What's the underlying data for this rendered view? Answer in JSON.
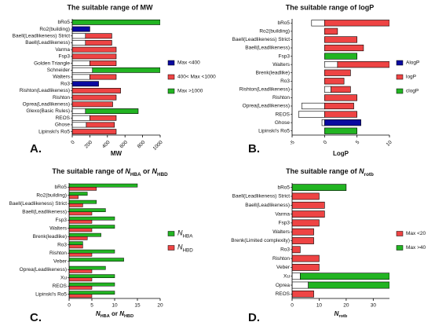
{
  "chart_data": [
    {
      "type": "range_bar",
      "panel": "A.",
      "title": "The suitable range of MW",
      "xlabel": "MW",
      "categories": [
        "bRo5",
        "Ro2(building)",
        "Baell(Leadlikeness) Strict",
        "Baell(Leadlikeness)",
        "Varma",
        "Fsp3",
        "Golden Triangle",
        "Schneider",
        "Walters",
        "Ro3",
        "Rishton(Leadlikeness)",
        "Rishton",
        "Oprea(Leadlikeness)",
        "Glexo(Basic Rules)",
        "REOS",
        "Ghose",
        "Lipinski's Ro5"
      ],
      "series": [
        {
          "name": "Max <400",
          "color": "#0a0aa0",
          "values": [
            null,
            [
              0,
              200
            ],
            null,
            null,
            null,
            null,
            null,
            null,
            null,
            [
              0,
              300
            ],
            null,
            null,
            null,
            null,
            null,
            null,
            null
          ]
        },
        {
          "name": "400< Max <1000",
          "color": "#ee4444",
          "values": [
            null,
            null,
            [
              150,
              450
            ],
            [
              150,
              450
            ],
            [
              0,
              500
            ],
            [
              0,
              500
            ],
            [
              200,
              500
            ],
            null,
            [
              200,
              500
            ],
            null,
            [
              0,
              550
            ],
            [
              0,
              500
            ],
            [
              0,
              460
            ],
            null,
            [
              200,
              500
            ],
            [
              160,
              480
            ],
            [
              0,
              500
            ]
          ]
        },
        {
          "name": "Max >1000",
          "color": "#22b422",
          "values": [
            [
              0,
              1000
            ],
            null,
            null,
            null,
            null,
            null,
            null,
            [
              230,
              1000
            ],
            null,
            null,
            null,
            null,
            null,
            [
              150,
              750
            ],
            null,
            null,
            null
          ]
        }
      ],
      "xlim": [
        0,
        1000
      ],
      "xticks": [
        0,
        200,
        400,
        600,
        800,
        1000
      ],
      "rotate_xticks": true,
      "legend": "right"
    },
    {
      "type": "range_bar",
      "panel": "B.",
      "title": "The suitable range of logP",
      "xlabel": "LogP",
      "categories": [
        "bRo5",
        "Ro2(building)",
        "Baell(Leadlikeness) Strict",
        "Baell(Leadlikeness)",
        "Fsp3",
        "Walters",
        "Brenk(leadlike)",
        "Ro3",
        "Rishton(Leadlikeness)",
        "Rishton",
        "Oprea(Leadlikeness)",
        "REOS",
        "Ghose",
        "Lipinski's Ro5"
      ],
      "series": [
        {
          "name": "AlogP",
          "color": "#0a0aa0",
          "values": [
            null,
            null,
            null,
            null,
            null,
            null,
            null,
            null,
            null,
            null,
            null,
            null,
            [
              -0.4,
              5.6
            ],
            null
          ]
        },
        {
          "name": "logP",
          "color": "#ee4444",
          "values": [
            [
              -2,
              10
            ],
            [
              0,
              2
            ],
            [
              0,
              5
            ],
            [
              0,
              6
            ],
            null,
            [
              2,
              10
            ],
            [
              0,
              4
            ],
            [
              0,
              3
            ],
            [
              1,
              4
            ],
            [
              0,
              5
            ],
            [
              -3.5,
              4.5
            ],
            [
              -4,
              5
            ],
            null,
            null
          ]
        },
        {
          "name": "clogP",
          "color": "#22b422",
          "values": [
            null,
            null,
            null,
            null,
            [
              0,
              5
            ],
            null,
            null,
            null,
            null,
            null,
            null,
            null,
            null,
            [
              0,
              5
            ]
          ]
        }
      ],
      "xlim": [
        -5,
        10
      ],
      "xticks": [
        -5,
        0,
        5,
        10
      ],
      "rotate_xticks": true,
      "legend": "right"
    },
    {
      "type": "grouped_bar",
      "panel": "C.",
      "title": [
        {
          "text": "The suitable range of "
        },
        {
          "text": "N",
          "sub": "HBA"
        },
        {
          "text": " or "
        },
        {
          "text": "N",
          "sub": "HBD"
        }
      ],
      "xlabel": [
        {
          "text": "N",
          "sub": "HBA"
        },
        {
          "text": " or "
        },
        {
          "text": "N",
          "sub": "HBD"
        }
      ],
      "categories": [
        "bRo5",
        "Ro2(building)",
        "Baell(Leadlikeness) Strict",
        "Baell(Leadlikeness)",
        "Fsp3",
        "Walters",
        "Brenk(leadlike)",
        "Ro3",
        "Rishton",
        "Veber",
        "Oprea(Leadlikeness)",
        "Xu",
        "REOS",
        "Lipinski's Ro5"
      ],
      "series": [
        {
          "name": [
            {
              "text": "N",
              "sub": "HBA"
            }
          ],
          "color": "#22b422",
          "values": [
            15,
            4,
            6,
            8,
            10,
            10,
            7,
            3,
            10,
            12,
            8,
            10,
            10,
            10
          ]
        },
        {
          "name": [
            {
              "text": "N",
              "sub": "HBD"
            }
          ],
          "color": "#ee4444",
          "values": [
            6,
            2,
            3,
            5,
            5,
            5,
            4,
            3,
            5,
            null,
            5,
            5,
            5,
            5
          ]
        }
      ],
      "xlim": [
        0,
        20
      ],
      "xticks": [
        0,
        5,
        10,
        15,
        20
      ],
      "rotate_xticks": false,
      "legend": "right"
    },
    {
      "type": "range_bar",
      "panel": "D.",
      "title": [
        {
          "text": "The suitable range of "
        },
        {
          "text": "N",
          "sub": "rotb"
        }
      ],
      "xlabel": [
        {
          "text": "N",
          "sub": "rotb"
        }
      ],
      "categories": [
        "bRo5",
        "Baell(Leadlikeness) Strict",
        "Baell(Leadlikeness)",
        "Varma",
        "Fsp3",
        "Walters",
        "Brenk(Limited complexity)",
        "Ro3",
        "Rishton",
        "Veber",
        "Xu",
        "Oprea",
        "REOS"
      ],
      "series": [
        {
          "name": "Max <20",
          "color": "#ee4444",
          "values": [
            null,
            [
              0,
              10
            ],
            [
              0,
              12
            ],
            [
              0,
              12
            ],
            [
              0,
              10
            ],
            [
              0,
              8
            ],
            [
              0,
              8
            ],
            [
              0,
              3
            ],
            [
              0,
              10
            ],
            [
              0,
              10
            ],
            null,
            null,
            [
              0,
              8
            ]
          ]
        },
        {
          "name": "Max >40",
          "color": "#22b422",
          "values": [
            [
              0,
              20
            ],
            null,
            null,
            null,
            null,
            null,
            null,
            null,
            null,
            null,
            [
              3,
              36
            ],
            [
              6,
              36
            ],
            null
          ]
        }
      ],
      "xlim": [
        0,
        36
      ],
      "xticks": [
        0,
        10,
        20,
        30
      ],
      "rotate_xticks": false,
      "legend": "right"
    }
  ]
}
